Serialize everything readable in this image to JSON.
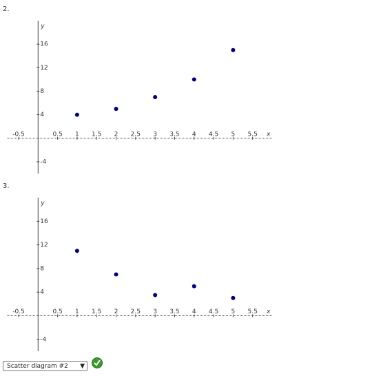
{
  "problems": [
    {
      "label": "2."
    },
    {
      "label": "3."
    }
  ],
  "chart_data": [
    {
      "type": "scatter",
      "x_label": "x",
      "y_label": "y",
      "x": [
        1,
        2,
        3,
        4,
        5
      ],
      "values": [
        4,
        5,
        7,
        10,
        15
      ],
      "color": "#000080",
      "xlim": [
        -0.8,
        6
      ],
      "ylim": [
        -6,
        20
      ],
      "xticks": [
        -0.5,
        0.5,
        1,
        1.5,
        2,
        2.5,
        3,
        3.5,
        4,
        4.5,
        5,
        5.5
      ],
      "yticks": [
        -4,
        4,
        8,
        12,
        16
      ]
    },
    {
      "type": "scatter",
      "x_label": "x",
      "y_label": "y",
      "x": [
        1,
        2,
        3,
        4,
        5
      ],
      "values": [
        11,
        7,
        3.5,
        5,
        3
      ],
      "color": "#000080",
      "xlim": [
        -0.8,
        6
      ],
      "ylim": [
        -6,
        20
      ],
      "xticks": [
        -0.5,
        0.5,
        1,
        1.5,
        2,
        2.5,
        3,
        3.5,
        4,
        4.5,
        5,
        5.5
      ],
      "yticks": [
        -4,
        4,
        8,
        12,
        16
      ]
    }
  ],
  "answer": {
    "selected": "Scatter diagram #2"
  }
}
